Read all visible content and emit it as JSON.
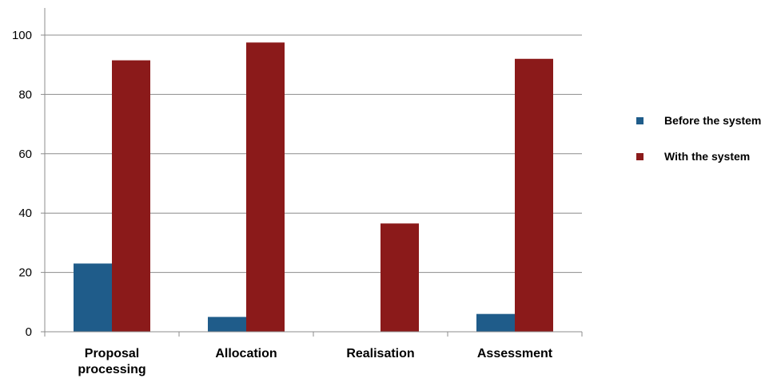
{
  "chart_data": {
    "type": "bar",
    "categories": [
      "Proposal processing",
      "Allocation",
      "Realisation",
      "Assessment"
    ],
    "category_label_lines": [
      [
        "Proposal",
        "processing"
      ],
      [
        "Allocation"
      ],
      [
        "Realisation"
      ],
      [
        "Assessment"
      ]
    ],
    "series": [
      {
        "name": "Before the system",
        "values": [
          23,
          5,
          0,
          6
        ],
        "color": "#1F5C8A"
      },
      {
        "name": "With the system",
        "values": [
          91.5,
          97.5,
          36.5,
          92
        ],
        "color": "#8B1A1A"
      }
    ],
    "ylim": [
      0,
      100
    ],
    "yticks": [
      0,
      20,
      40,
      60,
      80,
      100
    ],
    "title": "",
    "xlabel": "",
    "ylabel": "",
    "grid": true,
    "legend_position": "right"
  }
}
